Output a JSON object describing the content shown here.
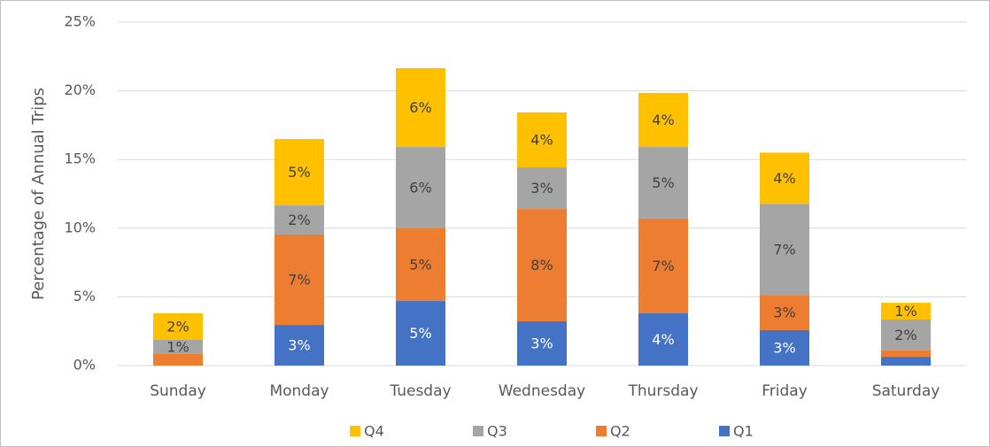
{
  "chart_data": {
    "type": "stacked_bar",
    "y_axis_label": "Percentage of Annual Trips",
    "categories": [
      "Sunday",
      "Monday",
      "Tuesday",
      "Wednesday",
      "Thursday",
      "Friday",
      "Saturday"
    ],
    "series": [
      {
        "name": "Q1",
        "color": "#4472c4",
        "label_color": "#ffffff",
        "values": [
          0,
          2.96,
          4.7,
          3.22,
          3.8,
          2.58,
          0.64
        ],
        "value_labels": [
          null,
          "3%",
          "5%",
          "3%",
          "4%",
          "3%",
          null
        ]
      },
      {
        "name": "Q2",
        "color": "#ed7d31",
        "label_color": "#404040",
        "values": [
          0.84,
          6.58,
          5.29,
          8.18,
          6.9,
          2.55,
          0.46
        ],
        "value_labels": [
          null,
          "7%",
          "5%",
          "8%",
          "7%",
          "3%",
          null
        ]
      },
      {
        "name": "Q3",
        "color": "#a5a5a5",
        "label_color": "#404040",
        "values": [
          1.03,
          2.12,
          5.92,
          3.03,
          5.21,
          6.64,
          2.25
        ],
        "value_labels": [
          "1%",
          "2%",
          "6%",
          "3%",
          "5%",
          "7%",
          "2%"
        ]
      },
      {
        "name": "Q4",
        "color": "#ffc000",
        "label_color": "#404040",
        "values": [
          1.93,
          4.83,
          5.74,
          4.0,
          3.94,
          3.73,
          1.22
        ],
        "value_labels": [
          "2%",
          "5%",
          "6%",
          "4%",
          "4%",
          "4%",
          "1%"
        ]
      }
    ],
    "ylim": [
      0,
      25
    ],
    "yticks": [
      {
        "value": 0,
        "label": "0%"
      },
      {
        "value": 5,
        "label": "5%"
      },
      {
        "value": 10,
        "label": "10%"
      },
      {
        "value": 15,
        "label": "15%"
      },
      {
        "value": 20,
        "label": "20%"
      },
      {
        "value": 25,
        "label": "25%"
      }
    ],
    "grid": true,
    "legend": "bottom"
  }
}
